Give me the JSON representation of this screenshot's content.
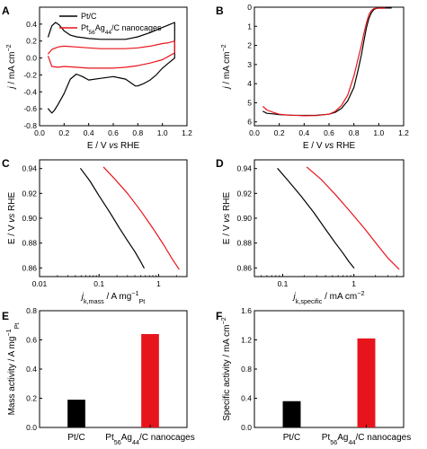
{
  "colors": {
    "black": "#000000",
    "red": "#e8141c",
    "axis": "#000000"
  },
  "chart_data": [
    {
      "panel": "A",
      "type": "line",
      "xlabel_parts": [
        "E / V ",
        "vs",
        " RHE"
      ],
      "ylabel_parts": [
        "j",
        " / mA cm",
        "−2"
      ],
      "xlim": [
        0,
        1.2
      ],
      "ylim": [
        -0.8,
        0.6
      ],
      "xticks": [
        0.0,
        0.2,
        0.4,
        0.6,
        0.8,
        1.0,
        1.2
      ],
      "xtick_labels": [
        "0.0",
        "0.2",
        "0.4",
        "0.6",
        "0.8",
        "1.0",
        "1.2"
      ],
      "yticks": [
        -0.8,
        -0.6,
        -0.4,
        -0.2,
        0.0,
        0.2,
        0.4
      ],
      "ytick_labels": [
        "-0.8",
        "-0.6",
        "-0.4",
        "-0.2",
        "0.0",
        "0.2",
        "0.4"
      ],
      "legend_position": "top-left",
      "series": [
        {
          "name": "Pt/C",
          "legend_parts": [
            "Pt/C"
          ],
          "color": "black",
          "x": [
            0.07,
            0.1,
            0.13,
            0.16,
            0.2,
            0.25,
            0.3,
            0.35,
            0.4,
            0.5,
            0.6,
            0.7,
            0.8,
            0.9,
            1.0,
            1.05,
            1.1,
            1.1,
            1.05,
            1.0,
            0.95,
            0.9,
            0.85,
            0.8,
            0.78,
            0.75,
            0.7,
            0.6,
            0.5,
            0.4,
            0.35,
            0.3,
            0.25,
            0.2,
            0.15,
            0.12,
            0.1,
            0.07
          ],
          "y": [
            0.25,
            0.38,
            0.42,
            0.39,
            0.32,
            0.27,
            0.25,
            0.24,
            0.23,
            0.22,
            0.22,
            0.22,
            0.25,
            0.3,
            0.36,
            0.39,
            0.42,
            0.0,
            -0.06,
            -0.12,
            -0.2,
            -0.26,
            -0.3,
            -0.33,
            -0.33,
            -0.3,
            -0.25,
            -0.22,
            -0.24,
            -0.26,
            -0.22,
            -0.19,
            -0.25,
            -0.42,
            -0.55,
            -0.62,
            -0.65,
            -0.6
          ]
        },
        {
          "name": "Pt56Ag44/C nanocages",
          "legend_parts": [
            "Pt",
            "56",
            "Ag",
            "44",
            "/C nanocages"
          ],
          "color": "red",
          "x": [
            0.07,
            0.1,
            0.15,
            0.2,
            0.3,
            0.4,
            0.5,
            0.6,
            0.7,
            0.8,
            0.9,
            1.0,
            1.05,
            1.1,
            1.1,
            1.05,
            1.0,
            0.9,
            0.8,
            0.7,
            0.6,
            0.5,
            0.4,
            0.3,
            0.2,
            0.15,
            0.1,
            0.07
          ],
          "y": [
            0.05,
            0.1,
            0.13,
            0.14,
            0.13,
            0.12,
            0.11,
            0.11,
            0.11,
            0.12,
            0.14,
            0.17,
            0.18,
            0.2,
            0.06,
            0.02,
            -0.02,
            -0.06,
            -0.09,
            -0.11,
            -0.12,
            -0.12,
            -0.12,
            -0.11,
            -0.1,
            -0.11,
            -0.1,
            0.02
          ]
        }
      ]
    },
    {
      "panel": "B",
      "type": "line",
      "xlabel_parts": [
        "E / V ",
        "vs",
        " RHE"
      ],
      "ylabel_parts": [
        "j",
        " / mA cm",
        "−2"
      ],
      "xlim": [
        0,
        1.2
      ],
      "ylim": [
        0,
        6.2
      ],
      "y_inverted": true,
      "xticks": [
        0.0,
        0.2,
        0.4,
        0.6,
        0.8,
        1.0,
        1.2
      ],
      "xtick_labels": [
        "0.0",
        "0.2",
        "0.4",
        "0.6",
        "0.8",
        "1.0",
        "1.2"
      ],
      "yticks": [
        0,
        1,
        2,
        3,
        4,
        5,
        6
      ],
      "ytick_labels": [
        "0",
        "1",
        "2",
        "3",
        "4",
        "5",
        "6"
      ],
      "series": [
        {
          "name": "Pt/C",
          "color": "black",
          "x": [
            0.07,
            0.1,
            0.15,
            0.2,
            0.3,
            0.4,
            0.5,
            0.6,
            0.65,
            0.7,
            0.75,
            0.8,
            0.83,
            0.86,
            0.88,
            0.9,
            0.92,
            0.94,
            0.96,
            0.98,
            1.0,
            1.05,
            1.1
          ],
          "y": [
            5.45,
            5.55,
            5.58,
            5.62,
            5.65,
            5.66,
            5.65,
            5.6,
            5.5,
            5.3,
            4.9,
            4.2,
            3.4,
            2.5,
            1.8,
            1.1,
            0.6,
            0.3,
            0.12,
            0.06,
            0.04,
            0.04,
            0.04
          ]
        },
        {
          "name": "Pt56Ag44/C nanocages",
          "color": "red",
          "x": [
            0.07,
            0.1,
            0.15,
            0.2,
            0.25,
            0.3,
            0.4,
            0.5,
            0.6,
            0.65,
            0.7,
            0.75,
            0.8,
            0.83,
            0.86,
            0.88,
            0.9,
            0.92,
            0.94,
            0.96,
            0.98,
            1.0,
            1.05
          ],
          "y": [
            5.2,
            5.38,
            5.5,
            5.6,
            5.63,
            5.65,
            5.68,
            5.67,
            5.6,
            5.45,
            5.15,
            4.6,
            3.6,
            2.8,
            2.0,
            1.4,
            0.85,
            0.4,
            0.18,
            0.08,
            0.05,
            0.05,
            0.05
          ]
        }
      ]
    },
    {
      "panel": "C",
      "type": "line",
      "x_scale": "log",
      "xlabel_parts": [
        "j",
        "k,mass",
        " / A mg",
        "−1",
        "Pt"
      ],
      "ylabel_parts": [
        "E / V ",
        "vs",
        " RHE"
      ],
      "xlim": [
        0.01,
        3
      ],
      "ylim": [
        0.853,
        0.947
      ],
      "xticks": [
        0.01,
        0.1,
        1
      ],
      "xtick_labels": [
        "0.01",
        "0.1",
        "1"
      ],
      "yticks": [
        0.86,
        0.88,
        0.9,
        0.92,
        0.94
      ],
      "ytick_labels": [
        "0.86",
        "0.88",
        "0.90",
        "0.92",
        "0.94"
      ],
      "series": [
        {
          "name": "Pt/C",
          "color": "black",
          "x": [
            0.049,
            0.07,
            0.1,
            0.15,
            0.22,
            0.3,
            0.4,
            0.5,
            0.57
          ],
          "y": [
            0.94,
            0.93,
            0.918,
            0.905,
            0.892,
            0.882,
            0.873,
            0.865,
            0.86
          ]
        },
        {
          "name": "Pt56Ag44/C nanocages",
          "color": "red",
          "x": [
            0.12,
            0.18,
            0.3,
            0.5,
            0.8,
            1.2,
            1.7,
            2.2
          ],
          "y": [
            0.941,
            0.932,
            0.92,
            0.906,
            0.892,
            0.879,
            0.867,
            0.859
          ]
        }
      ]
    },
    {
      "panel": "D",
      "type": "line",
      "x_scale": "log",
      "xlabel_parts": [
        "j",
        "k,specific",
        " / mA cm",
        "−2"
      ],
      "ylabel_parts": [
        "E / V ",
        "vs",
        " RHE"
      ],
      "xlim": [
        0.04,
        5
      ],
      "ylim": [
        0.853,
        0.947
      ],
      "xticks": [
        0.1,
        1
      ],
      "xtick_labels": [
        "0.1",
        "1"
      ],
      "yticks": [
        0.86,
        0.88,
        0.9,
        0.92,
        0.94
      ],
      "ytick_labels": [
        "0.86",
        "0.88",
        "0.90",
        "0.92",
        "0.94"
      ],
      "series": [
        {
          "name": "Pt/C",
          "color": "black",
          "x": [
            0.085,
            0.12,
            0.18,
            0.27,
            0.4,
            0.55,
            0.7,
            0.85,
            1.0
          ],
          "y": [
            0.94,
            0.93,
            0.918,
            0.905,
            0.891,
            0.88,
            0.872,
            0.865,
            0.86
          ]
        },
        {
          "name": "Pt56Ag44/C nanocages",
          "color": "red",
          "x": [
            0.22,
            0.35,
            0.55,
            0.9,
            1.4,
            2.1,
            3.0,
            4.3
          ],
          "y": [
            0.941,
            0.931,
            0.919,
            0.905,
            0.892,
            0.879,
            0.868,
            0.859
          ]
        }
      ]
    },
    {
      "panel": "E",
      "type": "bar",
      "ylabel_parts": [
        "Mass activity / A mg",
        "−1",
        "Pt"
      ],
      "categories": [
        "Pt/C",
        "Pt56Ag44/C nanocages"
      ],
      "category_label_parts": [
        [
          "Pt/C"
        ],
        [
          "Pt",
          "56",
          "Ag",
          "44",
          "/C nanocages"
        ]
      ],
      "values": [
        0.19,
        0.64
      ],
      "bar_colors": [
        "black",
        "red"
      ],
      "ylim": [
        0,
        0.8
      ],
      "yticks": [
        0.0,
        0.2,
        0.4,
        0.6,
        0.8
      ],
      "ytick_labels": [
        "0.0",
        "0.2",
        "0.4",
        "0.6",
        "0.8"
      ]
    },
    {
      "panel": "F",
      "type": "bar",
      "ylabel_parts": [
        "Specific activity / mA cm",
        "−2"
      ],
      "categories": [
        "Pt/C",
        "Pt56Ag44/C nanocages"
      ],
      "category_label_parts": [
        [
          "Pt/C"
        ],
        [
          "Pt",
          "56",
          "Ag",
          "44",
          "/C nanocages"
        ]
      ],
      "values": [
        0.36,
        1.22
      ],
      "bar_colors": [
        "black",
        "red"
      ],
      "ylim": [
        0,
        1.6
      ],
      "yticks": [
        0.0,
        0.4,
        0.8,
        1.2,
        1.6
      ],
      "ytick_labels": [
        "0.0",
        "0.4",
        "0.8",
        "1.2",
        "1.6"
      ]
    }
  ]
}
